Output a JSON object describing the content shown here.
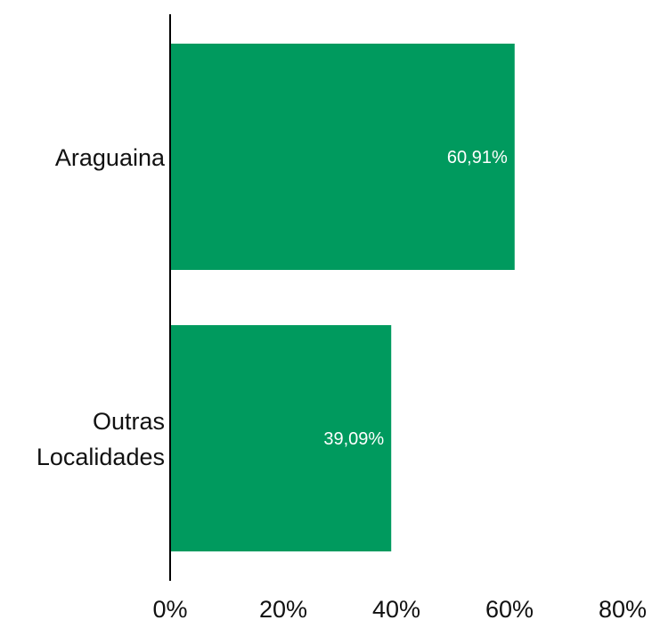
{
  "colors": {
    "bar": "#009a5e",
    "axis": "#000000",
    "data_label": "#ffffff",
    "text": "#111111"
  },
  "chart_data": {
    "type": "bar",
    "orientation": "horizontal",
    "categories": [
      [
        "Araguaina"
      ],
      [
        "Outras",
        "Localidades"
      ]
    ],
    "values": [
      60.91,
      39.09
    ],
    "data_labels": [
      "60,91%",
      "39,09%"
    ],
    "x_ticks": [
      0,
      20,
      40,
      60,
      80
    ],
    "x_tick_labels": [
      "0%",
      "20%",
      "40%",
      "60%",
      "80%"
    ],
    "xlim": [
      0,
      80
    ],
    "grid": false,
    "legend": "none",
    "title": "",
    "xlabel": "",
    "ylabel": ""
  }
}
